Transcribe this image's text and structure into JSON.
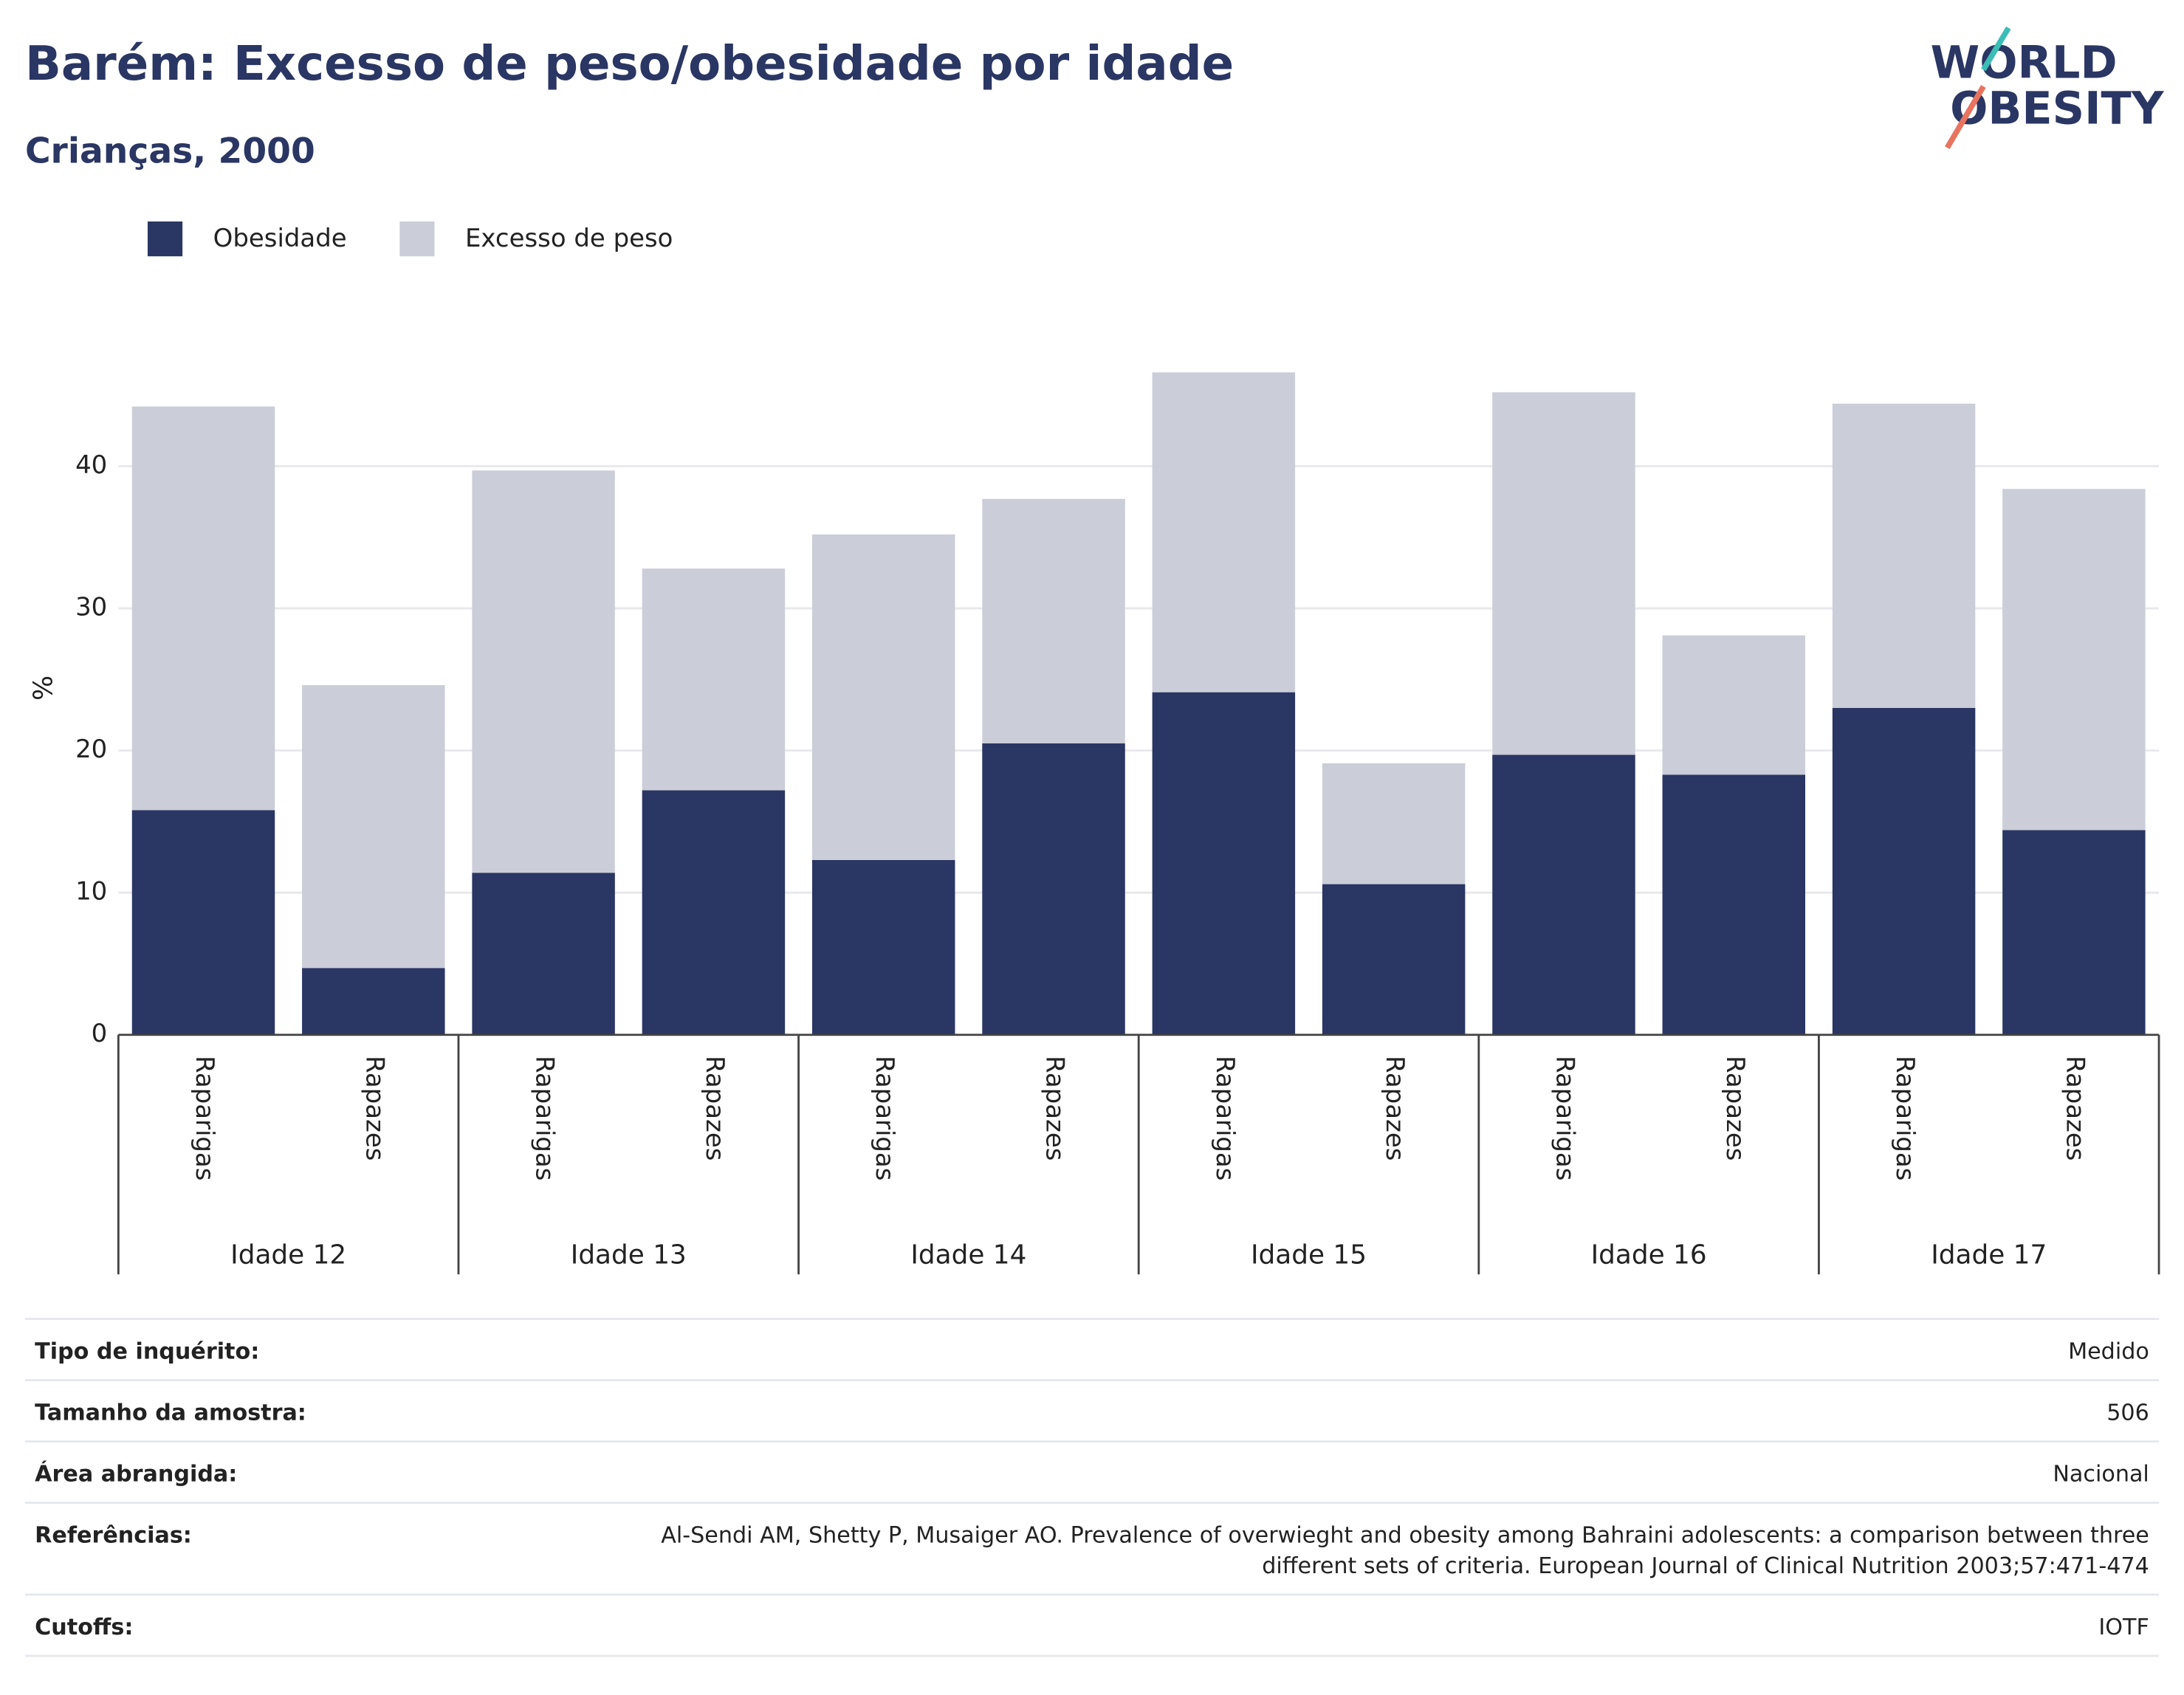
{
  "chart_data": {
    "type": "stacked_bar",
    "title": "Barém: Excesso de peso/obesidade por idade",
    "subtitle": "Crianças, 2000",
    "y_label": "%",
    "categories": [
      "Raparigas",
      "Rapazes",
      "Raparigas",
      "Rapazes",
      "Raparigas",
      "Rapazes",
      "Raparigas",
      "Rapazes",
      "Raparigas",
      "Rapazes",
      "Raparigas",
      "Rapazes"
    ],
    "groups": [
      "Idade 12",
      "Idade 13",
      "Idade 14",
      "Idade 15",
      "Idade 16",
      "Idade 17"
    ],
    "series": [
      {
        "name": "Obesidade",
        "color": "#2a3663",
        "values": [
          15.8,
          4.7,
          11.4,
          17.2,
          12.3,
          20.5,
          24.1,
          10.6,
          19.7,
          18.3,
          23.0,
          14.4
        ]
      },
      {
        "name": "Excesso de peso",
        "color": "#cbcdd8",
        "values": [
          28.4,
          19.9,
          28.3,
          15.6,
          22.9,
          17.2,
          22.5,
          8.5,
          25.5,
          9.8,
          21.4,
          24.0
        ]
      }
    ],
    "ylim": [
      0,
      48.3
    ],
    "yticks": [
      0,
      10,
      20,
      30,
      40
    ],
    "grid": true,
    "legend": "top-left"
  },
  "logo": {
    "line1": "WORLD",
    "line2": "OBESITY"
  },
  "table": {
    "rows": [
      {
        "label": "Tipo de inquérito:",
        "value": [
          "Medido"
        ]
      },
      {
        "label": "Tamanho da amostra:",
        "value": [
          "506"
        ]
      },
      {
        "label": "Área abrangida:",
        "value": [
          "Nacional"
        ]
      },
      {
        "label": "Referências:",
        "value": [
          "Al-Sendi AM, Shetty P, Musaiger AO. Prevalence of overwieght and obesity among Bahraini adolescents: a comparison between three",
          "different sets of criteria. European Journal of Clinical Nutrition 2003;57:471-474"
        ]
      },
      {
        "label": "Cutoffs:",
        "value": [
          "IOTF"
        ]
      }
    ]
  }
}
